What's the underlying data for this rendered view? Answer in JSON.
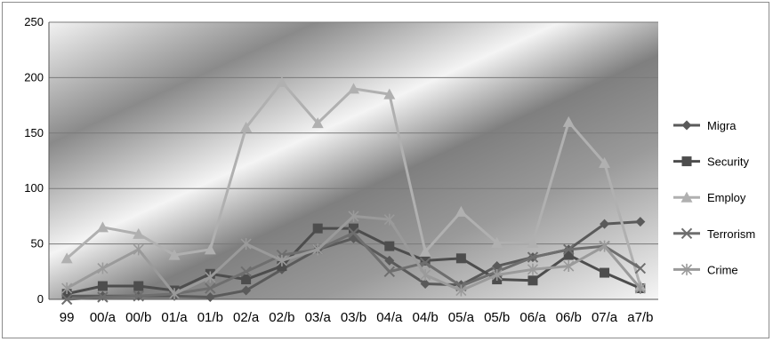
{
  "chart_data": {
    "type": "line",
    "title": "",
    "xlabel": "",
    "ylabel": "",
    "ylim": [
      0,
      250
    ],
    "yticks": [
      0,
      50,
      100,
      150,
      200,
      250
    ],
    "grid": "horizontal",
    "legend_position": "right",
    "categories": [
      "99",
      "00/a",
      "00/b",
      "01/a",
      "01/b",
      "02/a",
      "02/b",
      "03/a",
      "03/b",
      "04/a",
      "04/b",
      "05/a",
      "05/b",
      "06/a",
      "06/b",
      "07/a",
      "a7/b"
    ],
    "series": [
      {
        "name": "Migra",
        "marker": "diamond",
        "color": "#5a5a5a",
        "values": [
          3,
          3,
          3,
          3,
          2,
          8,
          27,
          45,
          55,
          35,
          14,
          13,
          30,
          38,
          45,
          68,
          70
        ]
      },
      {
        "name": "Security",
        "marker": "square",
        "color": "#4d4d4d",
        "values": [
          5,
          12,
          12,
          8,
          23,
          18,
          30,
          64,
          64,
          48,
          35,
          37,
          18,
          17,
          40,
          24,
          10
        ]
      },
      {
        "name": "Employ",
        "marker": "triangle",
        "color": "#b0b0b0",
        "values": [
          37,
          65,
          59,
          40,
          45,
          155,
          196,
          159,
          190,
          185,
          43,
          79,
          51,
          51,
          160,
          123,
          12
        ]
      },
      {
        "name": "Terrorism",
        "marker": "x",
        "color": "#6e6e6e",
        "values": [
          0,
          2,
          3,
          5,
          10,
          25,
          40,
          45,
          60,
          25,
          33,
          12,
          25,
          38,
          45,
          48,
          28
        ]
      },
      {
        "name": "Crime",
        "marker": "asterisk",
        "color": "#9a9a9a",
        "values": [
          10,
          28,
          45,
          5,
          20,
          50,
          35,
          45,
          75,
          72,
          22,
          8,
          22,
          27,
          30,
          48,
          10
        ]
      }
    ]
  }
}
